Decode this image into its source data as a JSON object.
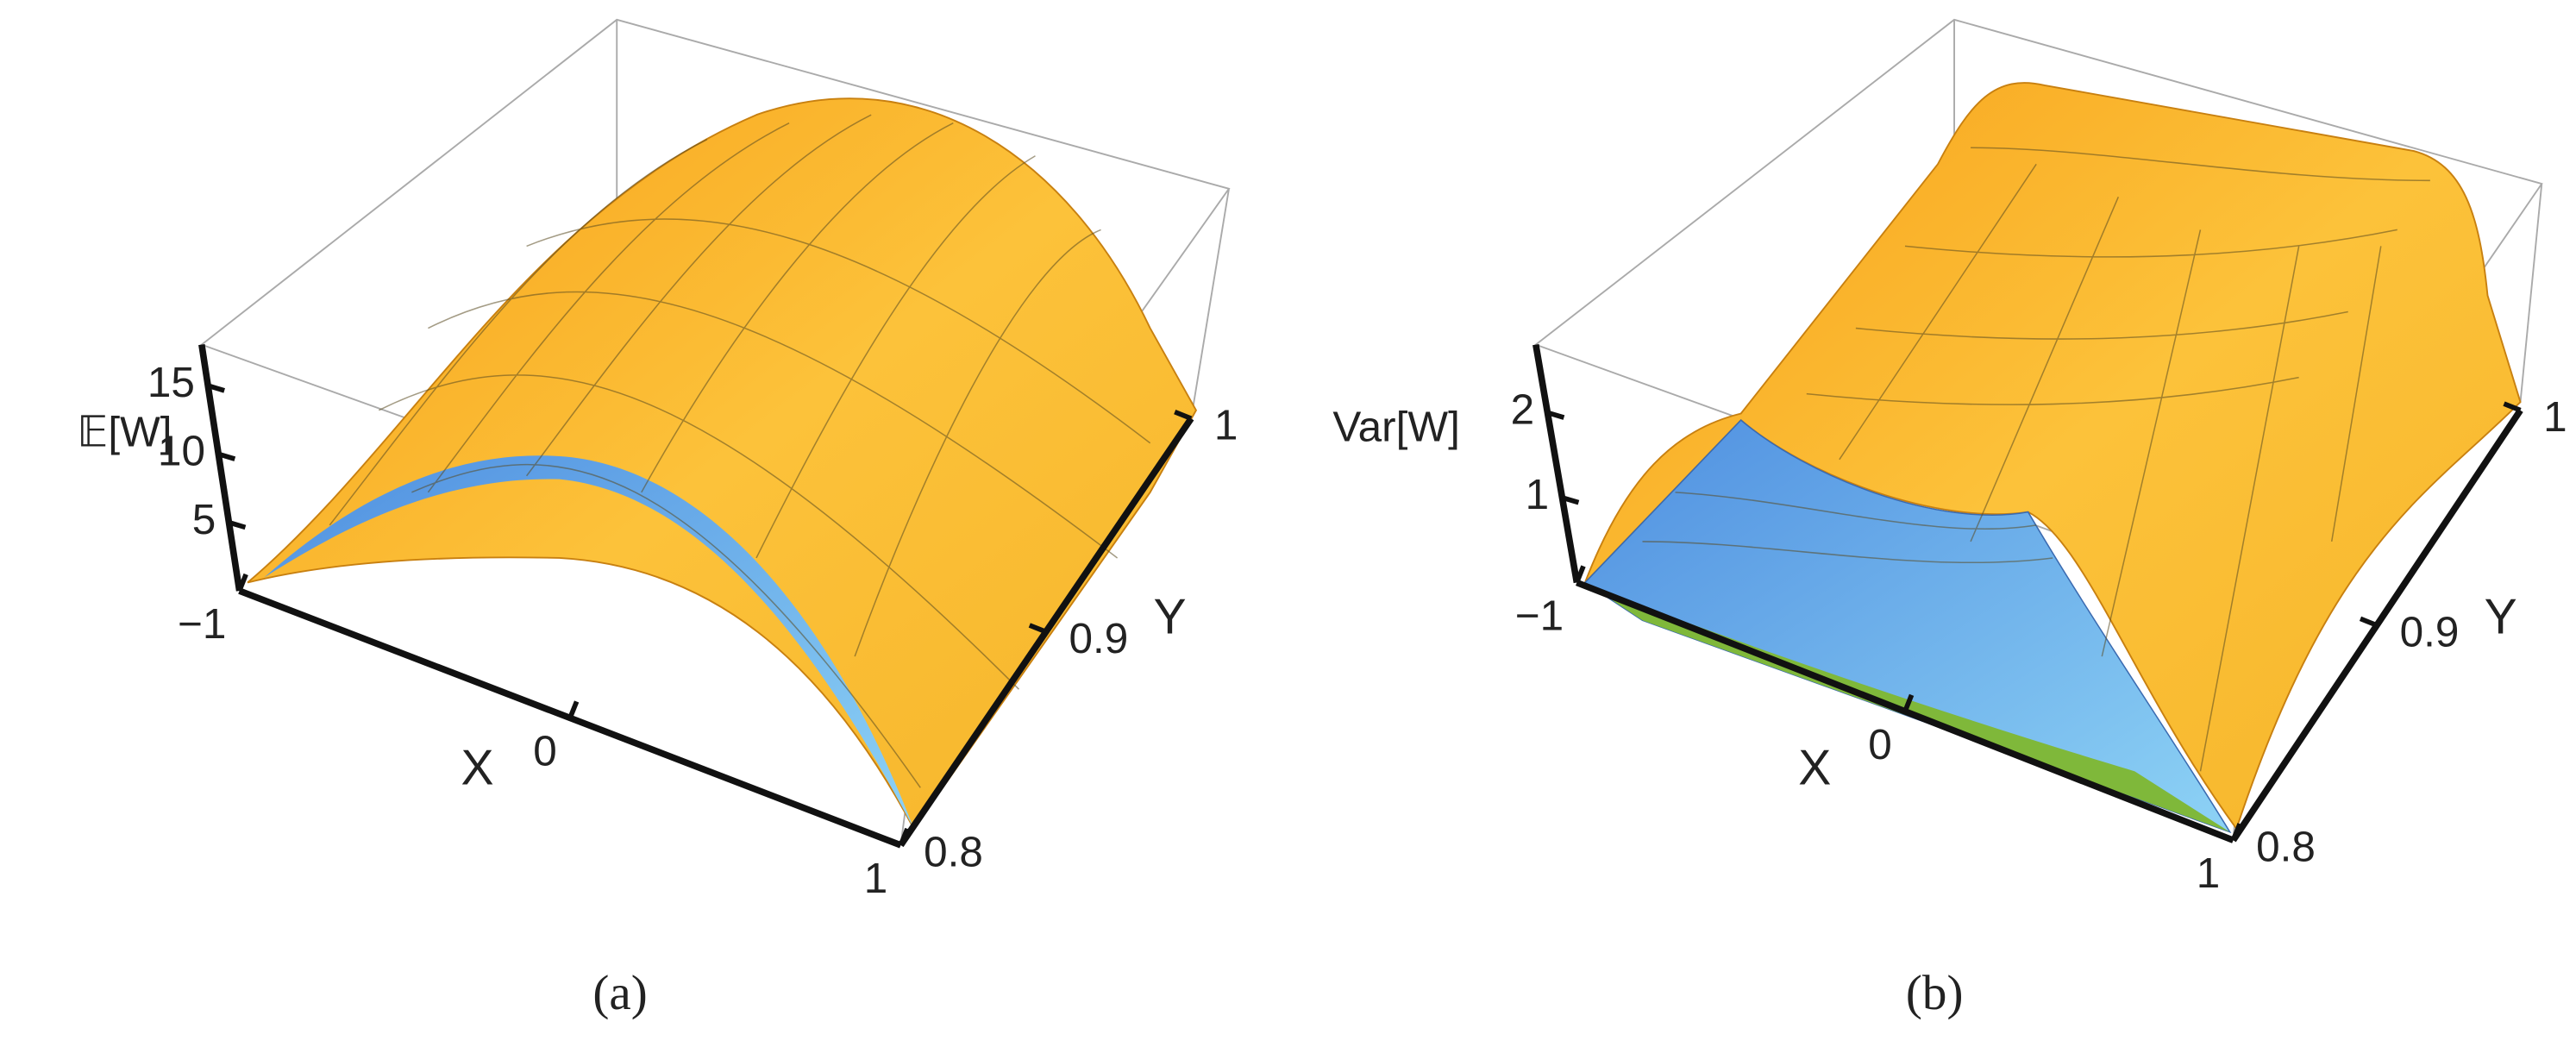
{
  "chart_data": [
    {
      "type": "surface",
      "caption": "(a)",
      "zlabel": "𝔼[W]",
      "xlabel": "X",
      "ylabel": "Y",
      "xlim": [
        -1,
        1
      ],
      "xticks": [
        {
          "value": -1,
          "label": "−1"
        },
        0,
        1
      ],
      "ylim": [
        0.8,
        1
      ],
      "yticks": [
        0.8,
        0.9,
        1
      ],
      "zlim": [
        0,
        18
      ],
      "zticks": [
        5,
        10,
        15
      ]
    },
    {
      "type": "surface",
      "caption": "(b)",
      "zlabel": "Var[W]",
      "xlabel": "X",
      "ylabel": "Y",
      "xlim": [
        -1,
        1
      ],
      "xticks": [
        {
          "value": -1,
          "label": "−1"
        },
        0,
        1
      ],
      "ylim": [
        0.8,
        1
      ],
      "yticks": [
        0.8,
        0.9,
        1
      ],
      "zlim": [
        0,
        2.8
      ],
      "zticks": [
        1,
        2
      ]
    }
  ]
}
